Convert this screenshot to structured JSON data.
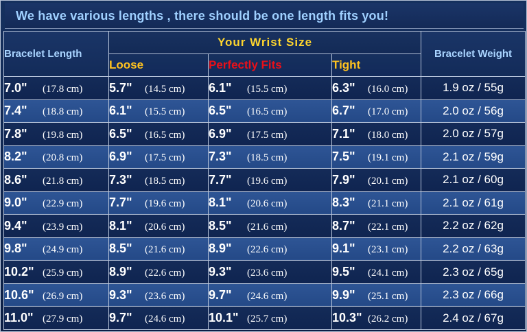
{
  "headline": "We have various lengths ,  there should be one length  fits you!",
  "headers": {
    "bracelet_length": "Bracelet Length",
    "wrist_size": "Your  Wrist  Size",
    "loose": "Loose",
    "perfect": "Perfectly  Fits",
    "tight": "Tight",
    "weight": "Bracelet Weight"
  },
  "rows": [
    {
      "len_in": "7.0\"",
      "len_cm": "(17.8 cm)",
      "loose_in": "5.7\"",
      "loose_cm": "(14.5 cm)",
      "fit_in": "6.1\"",
      "fit_cm": "(15.5 cm)",
      "tight_in": "6.3\"",
      "tight_cm": "(16.0 cm)",
      "weight": "1.9 oz  / 55g"
    },
    {
      "len_in": "7.4\"",
      "len_cm": "(18.8 cm)",
      "loose_in": "6.1\"",
      "loose_cm": "(15.5 cm)",
      "fit_in": "6.5\"",
      "fit_cm": "(16.5 cm)",
      "tight_in": "6.7\"",
      "tight_cm": "(17.0 cm)",
      "weight": "2.0 oz  / 56g"
    },
    {
      "len_in": "7.8\"",
      "len_cm": "(19.8 cm)",
      "loose_in": "6.5\"",
      "loose_cm": "(16.5 cm)",
      "fit_in": "6.9\"",
      "fit_cm": "(17.5 cm)",
      "tight_in": "7.1\"",
      "tight_cm": "(18.0 cm)",
      "weight": "2.0 oz  / 57g"
    },
    {
      "len_in": "8.2\"",
      "len_cm": "(20.8 cm)",
      "loose_in": "6.9\"",
      "loose_cm": "(17.5 cm)",
      "fit_in": "7.3\"",
      "fit_cm": "(18.5 cm)",
      "tight_in": "7.5\"",
      "tight_cm": "(19.1 cm)",
      "weight": "2.1 oz  / 59g"
    },
    {
      "len_in": "8.6\"",
      "len_cm": "(21.8 cm)",
      "loose_in": "7.3\"",
      "loose_cm": "(18.5 cm)",
      "fit_in": "7.7\"",
      "fit_cm": "(19.6 cm)",
      "tight_in": "7.9\"",
      "tight_cm": "(20.1 cm)",
      "weight": "2.1 oz  / 60g"
    },
    {
      "len_in": "9.0\"",
      "len_cm": "(22.9 cm)",
      "loose_in": "7.7\"",
      "loose_cm": "(19.6 cm)",
      "fit_in": "8.1\"",
      "fit_cm": "(20.6 cm)",
      "tight_in": "8.3\"",
      "tight_cm": "(21.1 cm)",
      "weight": "2.1 oz  / 61g"
    },
    {
      "len_in": "9.4\"",
      "len_cm": "(23.9 cm)",
      "loose_in": "8.1\"",
      "loose_cm": "(20.6 cm)",
      "fit_in": "8.5\"",
      "fit_cm": "(21.6 cm)",
      "tight_in": "8.7\"",
      "tight_cm": "(22.1 cm)",
      "weight": "2.2 oz  / 62g"
    },
    {
      "len_in": "9.8\"",
      "len_cm": "(24.9 cm)",
      "loose_in": "8.5\"",
      "loose_cm": "(21.6 cm)",
      "fit_in": "8.9\"",
      "fit_cm": "(22.6 cm)",
      "tight_in": "9.1\"",
      "tight_cm": "(23.1 cm)",
      "weight": "2.2 oz  / 63g"
    },
    {
      "len_in": "10.2\"",
      "len_cm": "(25.9 cm)",
      "loose_in": "8.9\"",
      "loose_cm": "(22.6 cm)",
      "fit_in": "9.3\"",
      "fit_cm": "(23.6 cm)",
      "tight_in": "9.5\"",
      "tight_cm": "(24.1 cm)",
      "weight": "2.3 oz  / 65g"
    },
    {
      "len_in": "10.6\"",
      "len_cm": "(26.9 cm)",
      "loose_in": "9.3\"",
      "loose_cm": "(23.6 cm)",
      "fit_in": "9.7\"",
      "fit_cm": "(24.6 cm)",
      "tight_in": "9.9\"",
      "tight_cm": "(25.1 cm)",
      "weight": "2.3 oz  / 66g"
    },
    {
      "len_in": "11.0\"",
      "len_cm": "(27.9 cm)",
      "loose_in": "9.7\"",
      "loose_cm": "(24.6 cm)",
      "fit_in": "10.1\"",
      "fit_cm": "(25.7 cm)",
      "tight_in": "10.3\"",
      "tight_cm": "(26.2 cm)",
      "weight": "2.4 oz  / 67g"
    }
  ]
}
